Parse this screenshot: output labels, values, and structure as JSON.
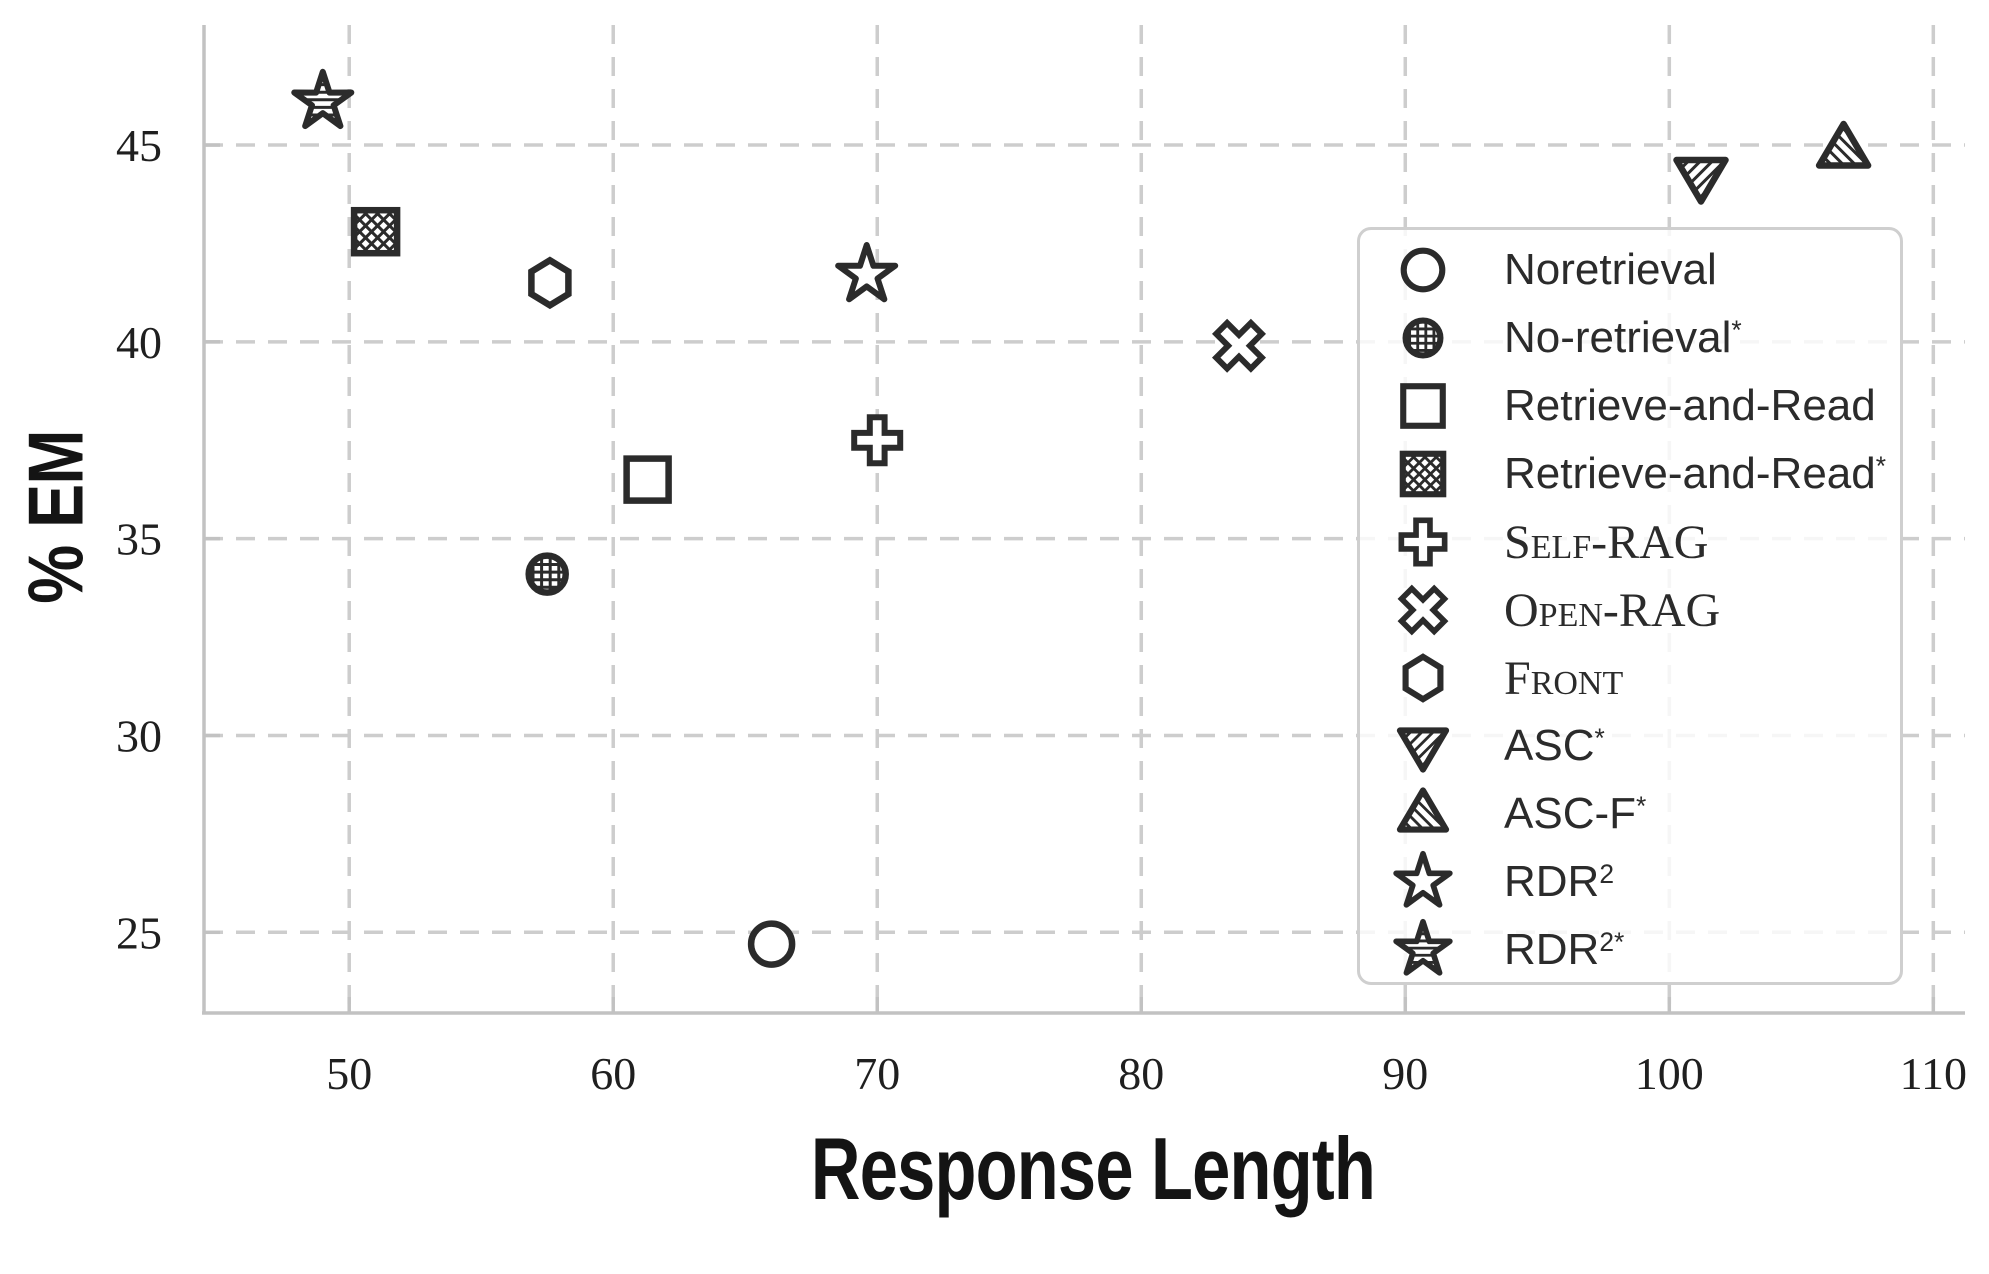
{
  "chart_data": {
    "type": "scatter",
    "title": "",
    "xlabel": "Response Length",
    "ylabel": "% EM",
    "xlim": [
      44.5,
      111.2
    ],
    "ylim": [
      22.95,
      48.05
    ],
    "x_ticks": [
      50,
      60,
      70,
      80,
      90,
      100,
      110
    ],
    "y_ticks": [
      25,
      30,
      35,
      40,
      45
    ],
    "grid": true,
    "grid_style": "dashed",
    "legend_position": "upper right",
    "series": [
      {
        "name": "Noretrieval",
        "sup": "",
        "smallcaps": false,
        "marker": "circle-open",
        "x": 66.0,
        "y": 24.7
      },
      {
        "name": "No-retrieval",
        "sup": "*",
        "smallcaps": false,
        "marker": "circle-grid",
        "x": 57.5,
        "y": 34.1
      },
      {
        "name": "Retrieve-and-Read",
        "sup": "",
        "smallcaps": false,
        "marker": "square-open",
        "x": 61.3,
        "y": 36.5
      },
      {
        "name": "Retrieve-and-Read",
        "sup": "*",
        "smallcaps": false,
        "marker": "square-crosshatch",
        "x": 51.0,
        "y": 42.8
      },
      {
        "name": "Self-RAG",
        "sup": "",
        "smallcaps": true,
        "marker": "plus-open",
        "x": 70.0,
        "y": 37.5
      },
      {
        "name": "Open-RAG",
        "sup": "",
        "smallcaps": true,
        "marker": "x-open",
        "x": 83.7,
        "y": 39.9
      },
      {
        "name": "Front",
        "sup": "",
        "smallcaps": true,
        "marker": "hexagon-open",
        "x": 57.6,
        "y": 41.5
      },
      {
        "name": "ASC",
        "sup": "*",
        "smallcaps": false,
        "marker": "triangle-down-hatch",
        "x": 101.2,
        "y": 44.2
      },
      {
        "name": "ASC-F",
        "sup": "*",
        "smallcaps": false,
        "marker": "triangle-up-hatch",
        "x": 106.6,
        "y": 44.9
      },
      {
        "name": "RDR",
        "sup": "2",
        "smallcaps": false,
        "marker": "star-open",
        "x": 69.6,
        "y": 41.7
      },
      {
        "name": "RDR",
        "sup": "2*",
        "smallcaps": false,
        "marker": "star-hhatch",
        "x": 49.0,
        "y": 46.1
      }
    ]
  },
  "colors": {
    "marker": "#2b2b2b",
    "grid": "#cdcdcd",
    "spine": "#c2c2c2",
    "tick_text": "#1f1f1f",
    "axis_label": "#141414",
    "legend_border": "#cfcfcf",
    "legend_bg": "rgba(255,255,255,0.82)"
  }
}
